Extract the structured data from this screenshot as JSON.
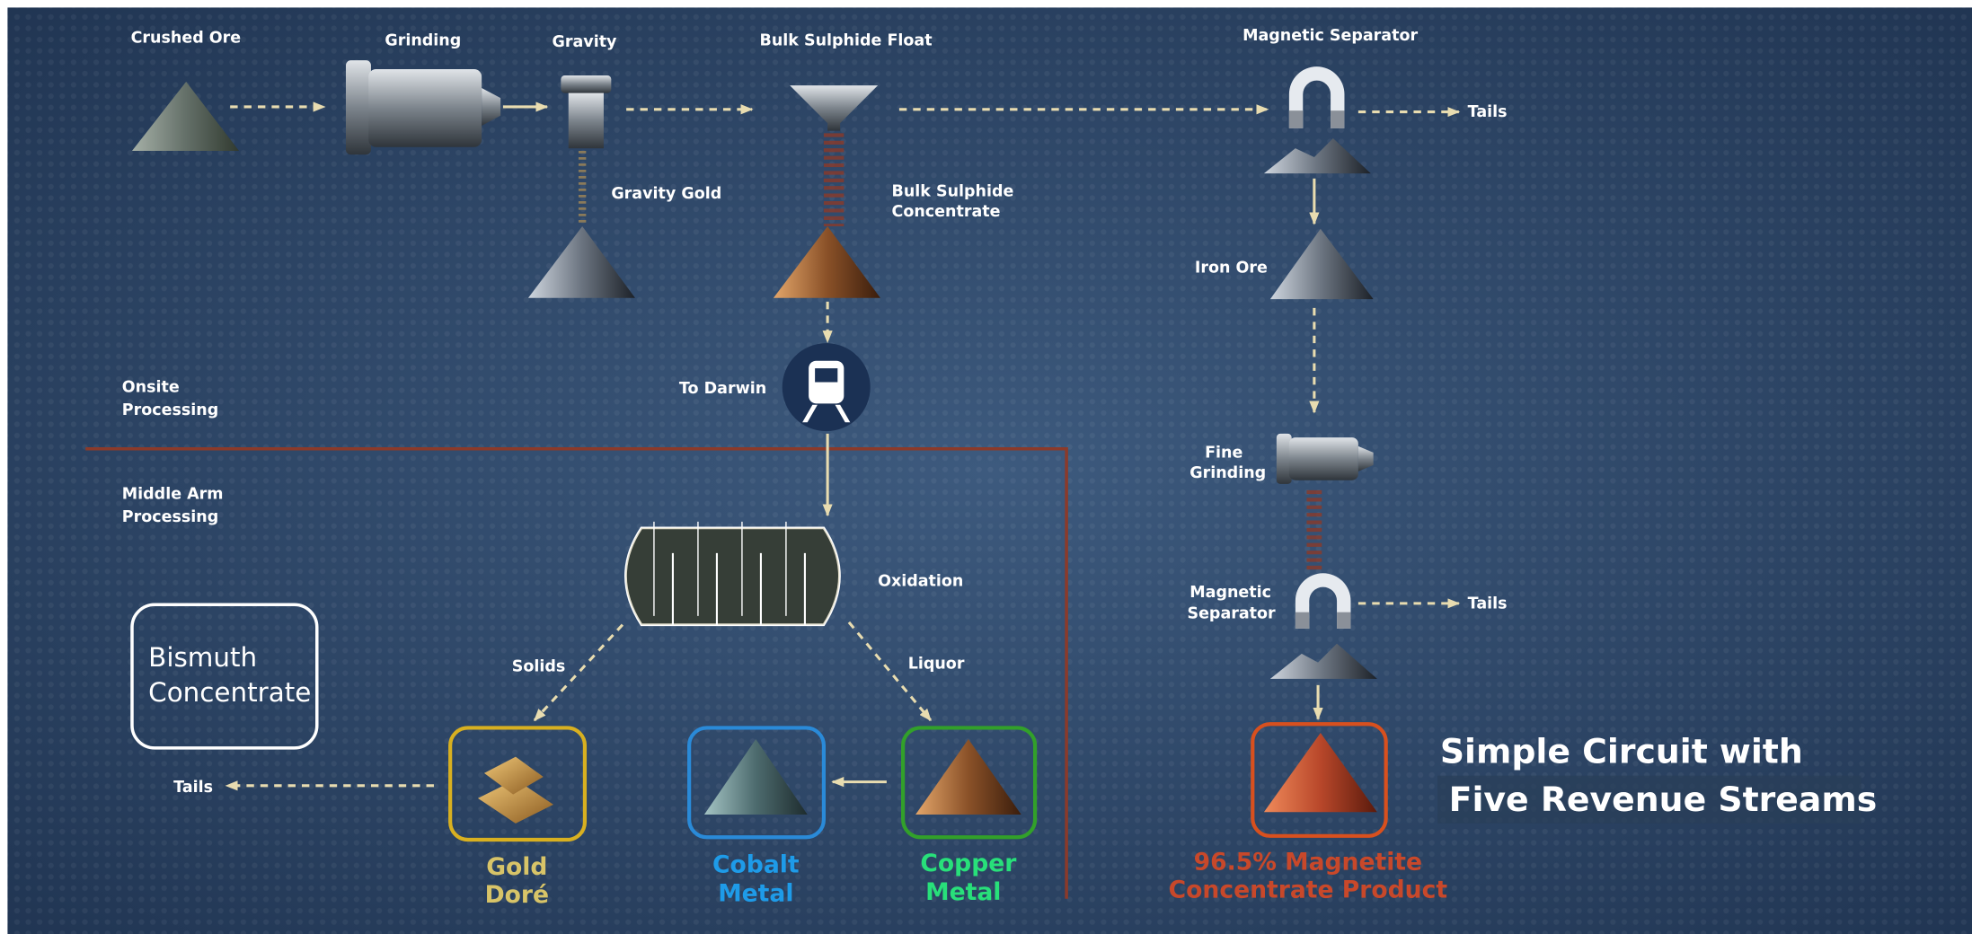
{
  "labels": {
    "crushed_ore": "Crushed Ore",
    "grinding": "Grinding",
    "gravity": "Gravity",
    "bulk_float": "Bulk Sulphide Float",
    "mag_sep_top": "Magnetic Separator",
    "tails_top": "Tails",
    "gravity_gold": "Gravity Gold",
    "bulk_conc": [
      "Bulk Sulphide",
      "Concentrate"
    ],
    "iron_ore": "Iron Ore",
    "onsite": [
      "Onsite",
      "Processing"
    ],
    "to_darwin": "To Darwin",
    "middle_arm": [
      "Middle Arm",
      "Processing"
    ],
    "fine_grinding": [
      "Fine",
      "Grinding"
    ],
    "oxidation": "Oxidation",
    "mag_sep_low": [
      "Magnetic",
      "Separator"
    ],
    "tails_right": "Tails",
    "solids": "Solids",
    "liquor": "Liquor",
    "bismuth": [
      "Bismuth",
      "Concentrate"
    ],
    "tails_left": "Tails",
    "gold": [
      "Gold",
      "Doré"
    ],
    "cobalt": [
      "Cobalt",
      "Metal"
    ],
    "copper": [
      "Copper",
      "Metal"
    ],
    "magnetite": [
      "96.5% Magnetite",
      "Concentrate Product"
    ],
    "headline": [
      "Simple Circuit with",
      "Five Revenue Streams"
    ]
  }
}
